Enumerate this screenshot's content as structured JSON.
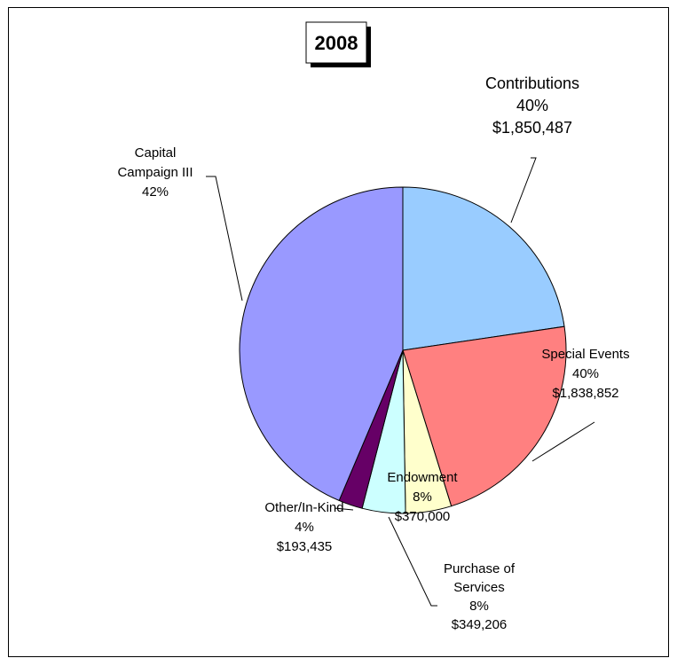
{
  "chart_data": {
    "type": "pie",
    "title": "2008",
    "slices": [
      {
        "label": "Contributions",
        "percent_label": "40%",
        "amount": "$1,850,487",
        "value": 1850487,
        "color": "#99ccff"
      },
      {
        "label": "Special Events",
        "percent_label": "40%",
        "amount": "$1,838,852",
        "value": 1838852,
        "color": "#ff8080"
      },
      {
        "label": "Endowment",
        "percent_label": "8%",
        "amount": "$370,000",
        "value": 370000,
        "color": "#ffffcc"
      },
      {
        "label": "Purchase of Services",
        "percent_label": "8%",
        "amount": "$349,206",
        "value": 349206,
        "color": "#ccffff"
      },
      {
        "label": "Other/In-Kind",
        "percent_label": "4%",
        "amount": "$193,435",
        "value": 193435,
        "color": "#660066"
      },
      {
        "label": "Capital Campaign III",
        "percent_label": "42%",
        "amount": "",
        "value": 3560000,
        "color": "#9999ff"
      }
    ]
  }
}
